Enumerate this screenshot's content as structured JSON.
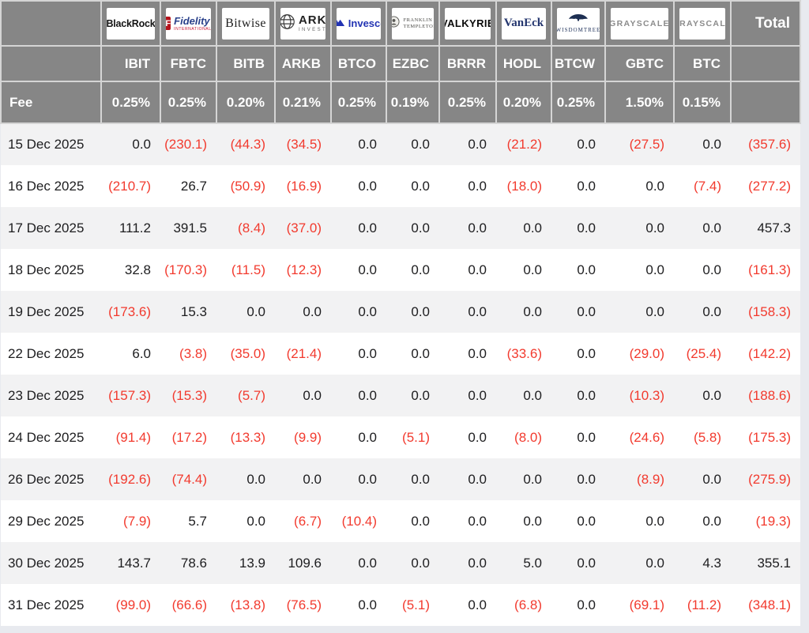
{
  "page": {
    "background": "#e8eaef"
  },
  "colors": {
    "page_bg": "#e8eaef",
    "header_bg": "#868686",
    "header_border": "#d5d5d5",
    "header_text": "#ffffff",
    "text": "#1d1d1f",
    "negative": "#f23a2e",
    "row_bg": "#ffffff",
    "row_alt_bg": "#f2f2f3",
    "card_bg": "#ffffff"
  },
  "table": {
    "fee_label": "Fee",
    "total_label": "Total",
    "columns": [
      {
        "ticker": "IBIT",
        "fee": "0.25%",
        "logo": "blackrock",
        "logo_text": "BlackRock"
      },
      {
        "ticker": "FBTC",
        "fee": "0.25%",
        "logo": "fidelity",
        "logo_badge": "F",
        "logo_text": "Fidelity",
        "logo_sub": "INTERNATIONAL"
      },
      {
        "ticker": "BITB",
        "fee": "0.20%",
        "logo": "bitwise",
        "logo_text": "Bitwise"
      },
      {
        "ticker": "ARKB",
        "fee": "0.21%",
        "logo": "ark",
        "logo_text": "ARK",
        "logo_sub": "INVEST"
      },
      {
        "ticker": "BTCO",
        "fee": "0.25%",
        "logo": "invesco",
        "logo_text": "Invesco"
      },
      {
        "ticker": "EZBC",
        "fee": "0.19%",
        "logo": "franklin",
        "logo_text": "FRANKLIN",
        "logo_sub": "TEMPLETON"
      },
      {
        "ticker": "BRRR",
        "fee": "0.25%",
        "logo": "valkyrie",
        "logo_text": "VALKYRIE"
      },
      {
        "ticker": "HODL",
        "fee": "0.20%",
        "logo": "vaneck",
        "logo_text": "VanEck"
      },
      {
        "ticker": "BTCW",
        "fee": "0.25%",
        "logo": "wisdomtree",
        "logo_text": "WISDOMTREE"
      },
      {
        "ticker": "GBTC",
        "fee": "1.50%",
        "logo": "grayscale",
        "logo_text": "GRAYSCALE"
      },
      {
        "ticker": "BTC",
        "fee": "0.15%",
        "logo": "grayscale",
        "logo_text": "GRAYSCALE"
      }
    ]
  },
  "chart_data": {
    "type": "table",
    "columns": [
      "IBIT",
      "FBTC",
      "BITB",
      "ARKB",
      "BTCO",
      "EZBC",
      "BRRR",
      "HODL",
      "BTCW",
      "GBTC",
      "BTC",
      "Total"
    ],
    "fees": [
      "0.25%",
      "0.25%",
      "0.20%",
      "0.21%",
      "0.25%",
      "0.19%",
      "0.25%",
      "0.20%",
      "0.25%",
      "1.50%",
      "0.15%"
    ],
    "negative_format": "parentheses-red",
    "rows": [
      {
        "date": "15 Dec 2025",
        "values": [
          0.0,
          -230.1,
          -44.3,
          -34.5,
          0.0,
          0.0,
          0.0,
          -21.2,
          0.0,
          -27.5,
          0.0
        ],
        "total": -357.6
      },
      {
        "date": "16 Dec 2025",
        "values": [
          -210.7,
          26.7,
          -50.9,
          -16.9,
          0.0,
          0.0,
          0.0,
          -18.0,
          0.0,
          0.0,
          -7.4
        ],
        "total": -277.2
      },
      {
        "date": "17 Dec 2025",
        "values": [
          111.2,
          391.5,
          -8.4,
          -37.0,
          0.0,
          0.0,
          0.0,
          0.0,
          0.0,
          0.0,
          0.0
        ],
        "total": 457.3
      },
      {
        "date": "18 Dec 2025",
        "values": [
          32.8,
          -170.3,
          -11.5,
          -12.3,
          0.0,
          0.0,
          0.0,
          0.0,
          0.0,
          0.0,
          0.0
        ],
        "total": -161.3
      },
      {
        "date": "19 Dec 2025",
        "values": [
          -173.6,
          15.3,
          0.0,
          0.0,
          0.0,
          0.0,
          0.0,
          0.0,
          0.0,
          0.0,
          0.0
        ],
        "total": -158.3
      },
      {
        "date": "22 Dec 2025",
        "values": [
          6.0,
          -3.8,
          -35.0,
          -21.4,
          0.0,
          0.0,
          0.0,
          -33.6,
          0.0,
          -29.0,
          -25.4
        ],
        "total": -142.2
      },
      {
        "date": "23 Dec 2025",
        "values": [
          -157.3,
          -15.3,
          -5.7,
          0.0,
          0.0,
          0.0,
          0.0,
          0.0,
          0.0,
          -10.3,
          0.0
        ],
        "total": -188.6
      },
      {
        "date": "24 Dec 2025",
        "values": [
          -91.4,
          -17.2,
          -13.3,
          -9.9,
          0.0,
          -5.1,
          0.0,
          -8.0,
          0.0,
          -24.6,
          -5.8
        ],
        "total": -175.3
      },
      {
        "date": "26 Dec 2025",
        "values": [
          -192.6,
          -74.4,
          0.0,
          0.0,
          0.0,
          0.0,
          0.0,
          0.0,
          0.0,
          -8.9,
          0.0
        ],
        "total": -275.9
      },
      {
        "date": "29 Dec 2025",
        "values": [
          -7.9,
          5.7,
          0.0,
          -6.7,
          -10.4,
          0.0,
          0.0,
          0.0,
          0.0,
          0.0,
          0.0
        ],
        "total": -19.3
      },
      {
        "date": "30 Dec 2025",
        "values": [
          143.7,
          78.6,
          13.9,
          109.6,
          0.0,
          0.0,
          0.0,
          5.0,
          0.0,
          0.0,
          4.3
        ],
        "total": 355.1
      },
      {
        "date": "31 Dec 2025",
        "values": [
          -99.0,
          -66.6,
          -13.8,
          -76.5,
          0.0,
          -5.1,
          0.0,
          -6.8,
          0.0,
          -69.1,
          -11.2
        ],
        "total": -348.1
      }
    ]
  }
}
